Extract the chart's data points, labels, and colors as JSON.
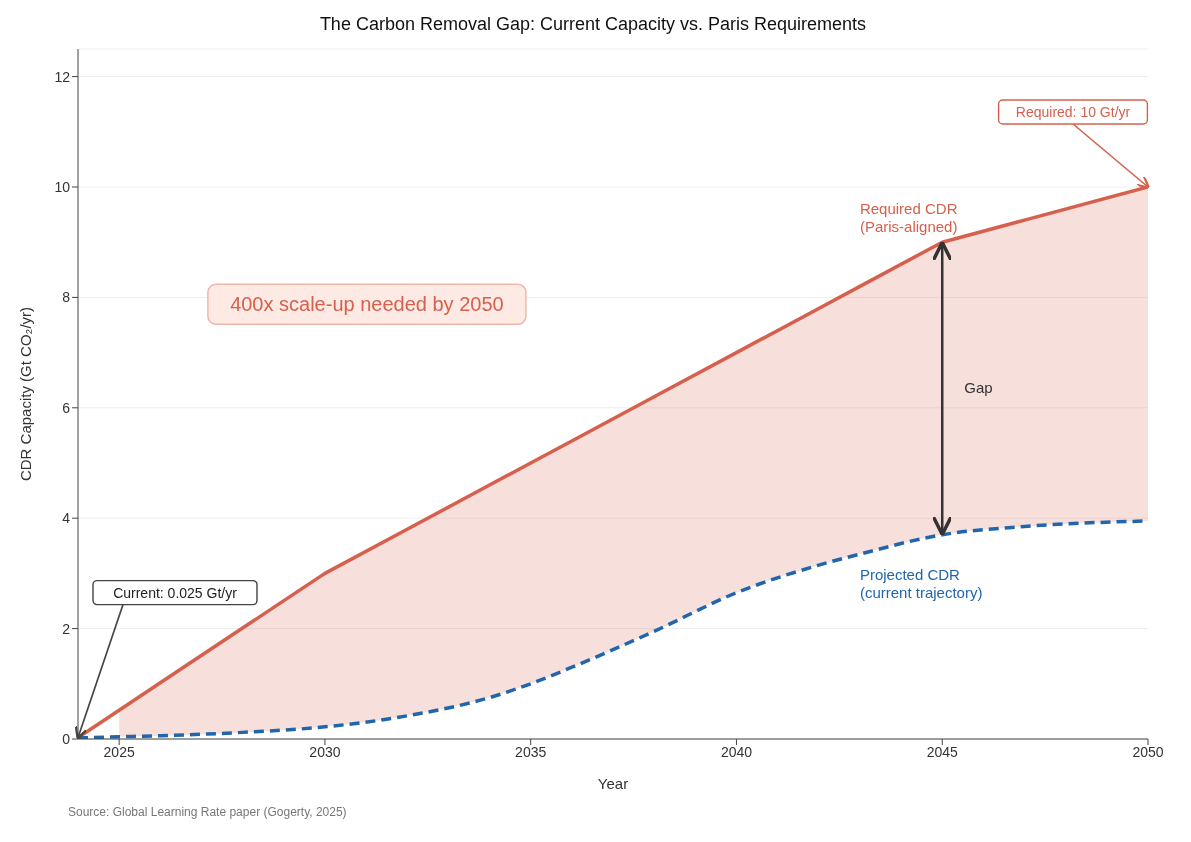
{
  "chart_data": {
    "type": "line",
    "title": "The Carbon Removal Gap: Current Capacity vs. Paris Requirements",
    "xlabel": "Year",
    "ylabel": "CDR Capacity (Gt CO₂/yr)",
    "x": [
      2024,
      2025,
      2026,
      2028,
      2030,
      2032,
      2034,
      2035,
      2036,
      2038,
      2040,
      2042,
      2043,
      2045,
      2047,
      2050
    ],
    "series": [
      {
        "name": "Required CDR\n(Paris-aligned)",
        "color": "#d6604d",
        "line_style": "solid",
        "values": [
          0.025,
          0.52,
          1.02,
          2.01,
          3,
          3.8,
          4.6,
          5,
          5.4,
          6.2,
          7,
          7.8,
          8.2,
          9,
          9.4,
          10
        ],
        "upper": [
          null,
          0.52,
          1.02,
          2.01,
          3,
          3.8,
          4.6,
          5,
          5.4,
          6.2,
          7,
          7.8,
          8.2,
          9,
          9.4,
          10
        ],
        "lower": [
          null,
          0.04,
          0.06,
          0.12,
          0.22,
          0.42,
          0.75,
          1,
          1.3,
          1.95,
          2.65,
          3.15,
          3.35,
          3.7,
          3.85,
          3.95
        ]
      },
      {
        "name": "Projected CDR\n(current trajectory)",
        "color": "#2166ac",
        "line_style": "dashed",
        "values": [
          0.02,
          0.04,
          0.06,
          0.12,
          0.22,
          0.42,
          0.75,
          1,
          1.3,
          1.95,
          2.65,
          3.15,
          3.35,
          3.7,
          3.85,
          3.95
        ]
      }
    ],
    "xlim": [
      2024,
      2050
    ],
    "xticks": [
      2025,
      2030,
      2035,
      2040,
      2045,
      2050
    ],
    "ylim": [
      0,
      12.5
    ],
    "yticks": [
      0,
      2,
      4,
      6,
      8,
      10,
      12
    ],
    "grid": "y",
    "annotations": [
      {
        "text": "Current: 0.025 Gt/yr",
        "x": 2024,
        "y": 0.025
      },
      {
        "text": "Required: 10 Gt/yr",
        "x": 2050,
        "y": 10
      },
      "400x scale-up needed by 2050",
      "Gap",
      "Source: Global Learning Rate paper (Gogerty, 2025)"
    ]
  }
}
